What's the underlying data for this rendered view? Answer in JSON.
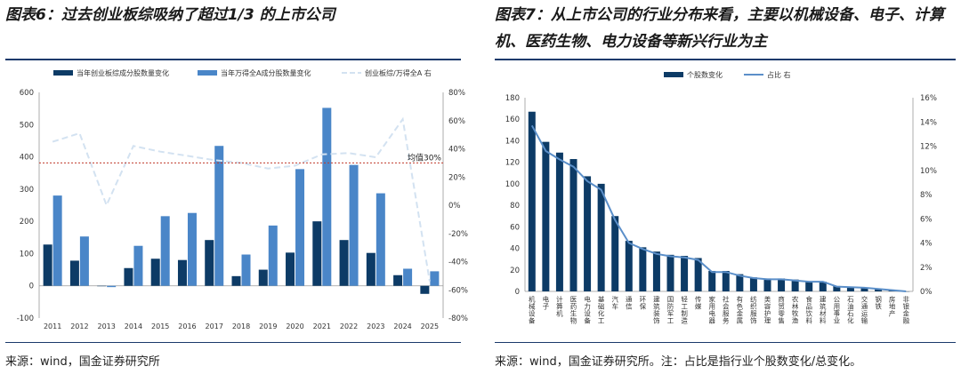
{
  "figure_left": {
    "title": "图表6：过去创业板综吸纳了超过1/3 的上市公司",
    "source": "来源：wind，国金证券研究所"
  },
  "figure_right": {
    "title": "图表7：从上市公司的行业分布来看，主要以机械设备、电子、计算机、医药生物、电力设备等新兴行业为主",
    "source": "来源：wind，国金证券研究所。注：占比是指行业个股数变化/总变化。"
  },
  "chart_data": [
    {
      "type": "bar",
      "categories": [
        "2011",
        "2012",
        "2013",
        "2014",
        "2015",
        "2016",
        "2017",
        "2018",
        "2019",
        "2020",
        "2021",
        "2022",
        "2023",
        "2024",
        "2025"
      ],
      "series": [
        {
          "name": "当年创业板综成分股数量变化",
          "kind": "bar",
          "color": "#0d3b66",
          "values": [
            128,
            78,
            0,
            55,
            84,
            80,
            142,
            30,
            50,
            103,
            200,
            142,
            102,
            33,
            -25
          ]
        },
        {
          "name": "当年万得全A成分股数量变化",
          "kind": "bar",
          "color": "#4a86c8",
          "values": [
            280,
            153,
            -4,
            124,
            216,
            226,
            434,
            97,
            187,
            362,
            552,
            375,
            287,
            53,
            45
          ]
        },
        {
          "name": "创业板综/万得全A 右",
          "kind": "line",
          "axis": "right",
          "color": "#d3e2f1",
          "dash": true,
          "values": [
            45,
            51,
            0,
            42,
            38,
            35,
            32,
            30,
            26,
            28,
            36,
            37,
            34,
            61,
            -54
          ]
        }
      ],
      "ylim": [
        -100,
        600
      ],
      "yticks": [
        -100,
        0,
        100,
        200,
        300,
        400,
        500,
        600
      ],
      "y2lim": [
        -80,
        80
      ],
      "y2ticks": [
        "-80%",
        "-60%",
        "-40%",
        "-20%",
        "0%",
        "20%",
        "40%",
        "60%",
        "80%"
      ],
      "reference_line": {
        "label": "均值30%",
        "value": 30,
        "axis": "right",
        "color": "#c0392b"
      },
      "legend_position": "top"
    },
    {
      "type": "bar",
      "categories": [
        "机械设备",
        "电子",
        "计算机",
        "医药生物",
        "电力设备",
        "基础化工",
        "汽车",
        "通信",
        "环保",
        "建筑装饰",
        "国防军工",
        "轻工制造",
        "传媒",
        "家用电器",
        "社会服务",
        "有色金属",
        "纺织服饰",
        "美容护理",
        "商贸零售",
        "农林牧渔",
        "食品饮料",
        "建筑材料",
        "公用事业",
        "石油石化",
        "交通运输",
        "钢铁",
        "房地产",
        "非银金融"
      ],
      "series": [
        {
          "name": "个股数变化",
          "kind": "bar",
          "color": "#0d3b66",
          "values": [
            167,
            139,
            129,
            123,
            107,
            100,
            70,
            47,
            41,
            37,
            34,
            33,
            31,
            19,
            19,
            16,
            13,
            12,
            12,
            11,
            9,
            9,
            5,
            4,
            3,
            2,
            1,
            0
          ]
        },
        {
          "name": "占比 右",
          "kind": "line",
          "axis": "right",
          "color": "#5b8fc9",
          "values": [
            13.7,
            11.6,
            10.9,
            10.3,
            9.1,
            8.4,
            5.9,
            4.0,
            3.5,
            3.1,
            2.9,
            2.8,
            2.6,
            1.6,
            1.6,
            1.3,
            1.1,
            1.0,
            1.0,
            0.9,
            0.8,
            0.8,
            0.4,
            0.35,
            0.3,
            0.2,
            0.1,
            0.0
          ]
        }
      ],
      "ylim": [
        0,
        180
      ],
      "yticks": [
        0,
        20,
        40,
        60,
        80,
        100,
        120,
        140,
        160,
        180
      ],
      "y2lim": [
        0,
        16
      ],
      "y2ticks": [
        "0%",
        "2%",
        "4%",
        "6%",
        "8%",
        "10%",
        "12%",
        "14%",
        "16%"
      ],
      "legend_position": "top"
    }
  ]
}
